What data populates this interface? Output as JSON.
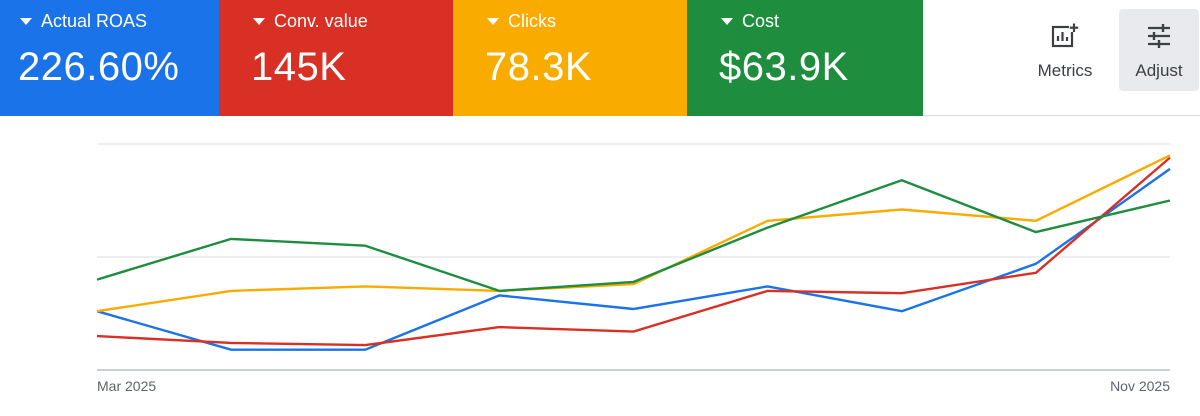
{
  "cards": [
    {
      "label": "Actual ROAS",
      "value": "226.60%",
      "color": "#1a73e8"
    },
    {
      "label": "Conv. value",
      "value": "145K",
      "color": "#d93025"
    },
    {
      "label": "Clicks",
      "value": "78.3K",
      "color": "#f9ab00"
    },
    {
      "label": "Cost",
      "value": "$63.9K",
      "color": "#1e8e3e"
    }
  ],
  "tools": {
    "metrics": {
      "label": "Metrics",
      "icon": "add-chart-icon"
    },
    "adjust": {
      "label": "Adjust",
      "icon": "tune-icon"
    }
  },
  "chart_data": {
    "type": "line",
    "x_start_label": "Mar 2025",
    "x_end_label": "Nov 2025",
    "ylim": [
      0,
      100
    ],
    "grid": true,
    "series": [
      {
        "color": "#1a73e8",
        "values": [
          26,
          9,
          9,
          33,
          27,
          37,
          26,
          47,
          89
        ]
      },
      {
        "color": "#d93025",
        "values": [
          15,
          12,
          11,
          19,
          17,
          35,
          34,
          43,
          94
        ]
      },
      {
        "color": "#f9ab00",
        "values": [
          26,
          35,
          37,
          35,
          38,
          66,
          71,
          66,
          95
        ]
      },
      {
        "color": "#1e8e3e",
        "values": [
          40,
          58,
          55,
          35,
          39,
          63,
          84,
          61,
          75
        ]
      }
    ]
  }
}
